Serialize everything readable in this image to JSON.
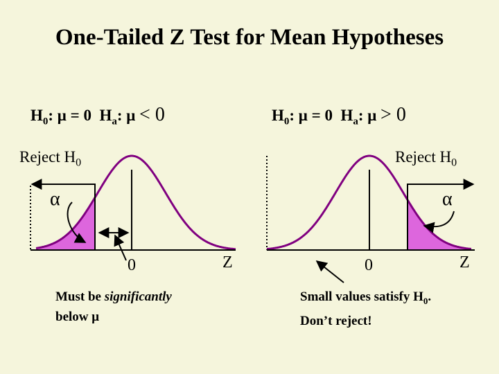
{
  "title": "One-Tailed Z Test for Mean Hypotheses",
  "left": {
    "h0": "H",
    "h0_sub": "0",
    "h0_rest": ": μ = 0",
    "ha": "H",
    "ha_sub": "a",
    "ha_rest": ": μ",
    "ha_sign": "< 0",
    "reject": "Reject H",
    "reject_sub": "0",
    "alpha": "α",
    "zero": "0",
    "z": "Z",
    "note_line1_a": "Must be ",
    "note_line1_b": "significantly",
    "note_line2": "below μ"
  },
  "right": {
    "h0": "H",
    "h0_sub": "0",
    "h0_rest": ": μ = 0",
    "ha": "H",
    "ha_sub": "a",
    "ha_rest": ": μ",
    "ha_sign": "> 0",
    "reject": "Reject H",
    "reject_sub": "0",
    "alpha": "α",
    "zero": "0",
    "z": "Z",
    "note_line1": "Small values satisfy H",
    "note_line1_sub": "0",
    "note_line1_end": ".",
    "note_line2": "Don’t reject!"
  },
  "colors": {
    "background": "#f5f5dc",
    "curve": "#800080",
    "shade": "#dd66dd"
  }
}
